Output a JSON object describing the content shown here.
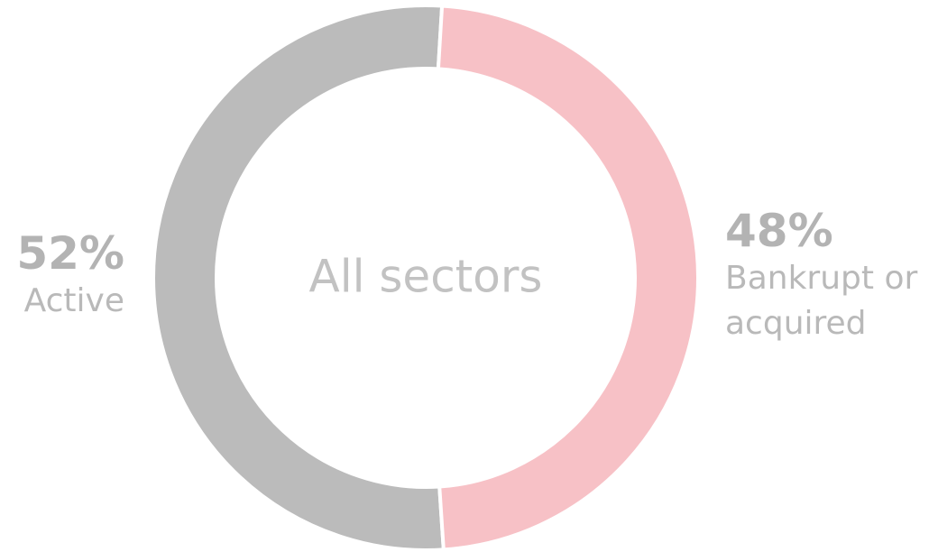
{
  "chart_data": {
    "type": "donut",
    "center_label": "All sectors",
    "categories": [
      "Bankrupt or acquired",
      "Active"
    ],
    "values": [
      48,
      52
    ],
    "value_labels": [
      "48%",
      "52%"
    ],
    "colors": [
      "#f7c1c6",
      "#bbbbbb"
    ]
  }
}
